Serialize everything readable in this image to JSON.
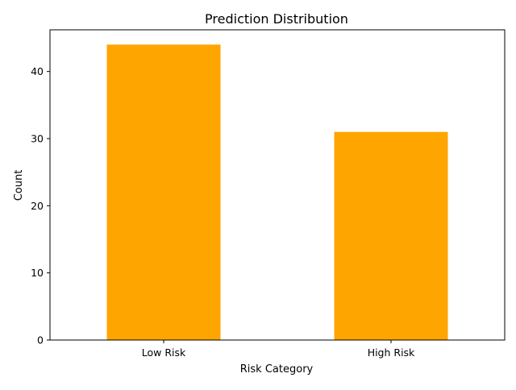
{
  "chart_data": {
    "type": "bar",
    "title": "Prediction Distribution",
    "xlabel": "Risk Category",
    "ylabel": "Count",
    "categories": [
      "Low Risk",
      "High Risk"
    ],
    "values": [
      44,
      31
    ],
    "ylim": [
      0,
      46.2
    ],
    "yticks": [
      0,
      10,
      20,
      30,
      40
    ],
    "bar_color": "#FFA500",
    "grid": false,
    "legend": "none"
  }
}
